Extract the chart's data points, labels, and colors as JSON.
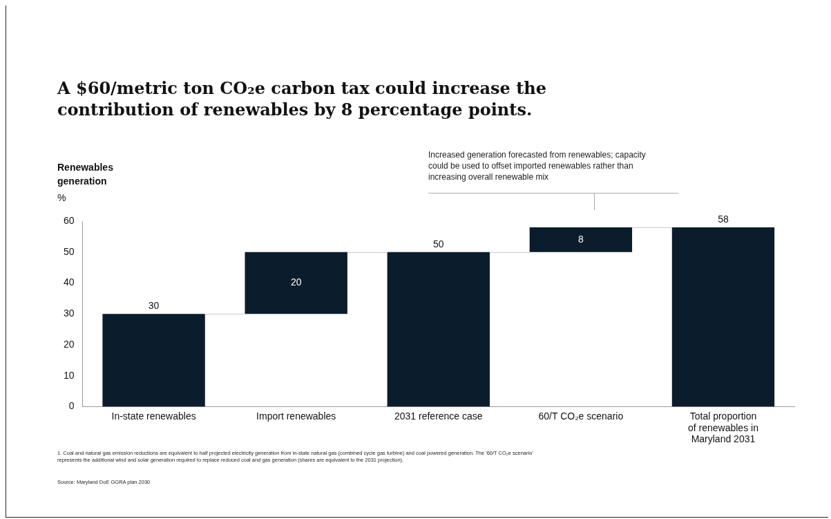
{
  "chart_data": {
    "type": "bar",
    "title": "A $60/metric ton CO₂e carbon tax could increase the contribution of renewables by 8 percentage points.",
    "ylabel": "Renewables\ngeneration\n%",
    "categories": [
      "In-state renewables",
      "Import renewables",
      "2031 reference case",
      "60/T CO₂e scenario",
      "Total proportion of renewables in Maryland 2031"
    ],
    "values": [
      30,
      20,
      50,
      8,
      58
    ],
    "base": [
      0,
      30,
      0,
      50,
      0
    ],
    "color": "#0b1d2c",
    "ylim": [
      0,
      60
    ],
    "yticks": [
      0,
      10,
      20,
      30,
      40,
      50,
      60
    ],
    "grid": false,
    "legend": false,
    "data_labels": true,
    "annotations": [
      "Increased generation forecasted from renewables; capacity could be used to offset imported renewables rather than increasing overall renewable mix",
      "1. Coal and natural gas emission reductions are equivalent to half projected electricity generation from in-state natural gas (combined cycle gas turbine) and coal powered generation. The '60/T CO₂e scenario' represents the additional wind and solar generation required to replace reduced coal and gas generation (shares are equivalent to the 2031 projection).",
      "Source: Maryland DoE GGRA plan 2030"
    ]
  }
}
